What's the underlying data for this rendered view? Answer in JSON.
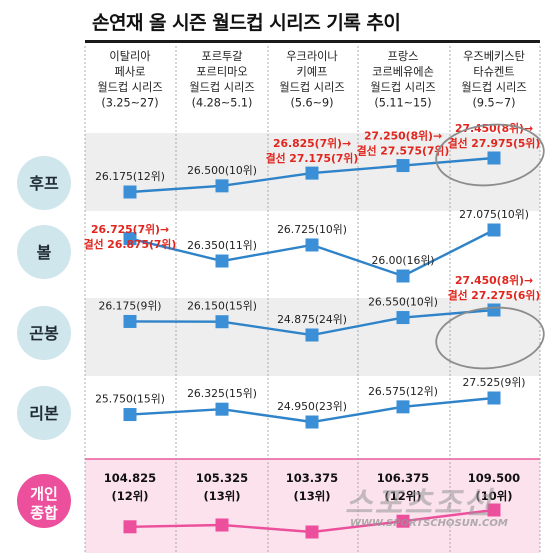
{
  "title": "손연재 올 시즌 월드컵 시리즈 기록 추이",
  "watermark": {
    "main": "스포츠조선",
    "url": "WWW.SPORTSCHOSUN.COM"
  },
  "colors": {
    "line": "#2f83c9",
    "marker": "#3a8fd6",
    "total_line": "#ec4f9b",
    "highlight": "#e0261e",
    "circle_fill": "#cfe6ec",
    "total_circle": "#ec4f9b",
    "band_gray": "#eeeeee",
    "band_pink": "#fbe2ec"
  },
  "columns": [
    {
      "lines": [
        "이탈리아",
        "페사로",
        "월드컵 시리즈",
        "(3.25~27)"
      ]
    },
    {
      "lines": [
        "포르투갈",
        "포르티마오",
        "월드컵 시리즈",
        "(4.28~5.1)"
      ]
    },
    {
      "lines": [
        "우크라이나",
        "키예프",
        "월드컵 시리즈",
        "(5.6~9)"
      ]
    },
    {
      "lines": [
        "프랑스",
        "코르베유에손",
        "월드컵 시리즈",
        "(5.11~15)"
      ]
    },
    {
      "lines": [
        "우즈베키스탄",
        "타슈켄트",
        "월드컵 시리즈",
        "(9.5~7)"
      ]
    }
  ],
  "chart_data": {
    "type": "line",
    "title": "손연재 올 시즌 월드컵 시리즈 기록 추이",
    "categories": [
      "이탈리아 페사로 월드컵 시리즈 (3.25~27)",
      "포르투갈 포르티마오 월드컵 시리즈 (4.28~5.1)",
      "우크라이나 키예프 월드컵 시리즈 (5.6~9)",
      "프랑스 코르베유에손 월드컵 시리즈 (5.11~15)",
      "우즈베키스탄 타슈켄트 월드컵 시리즈 (9.5~7)"
    ],
    "series": [
      {
        "name": "후프",
        "values": [
          26.175,
          26.5,
          27.175,
          27.575,
          27.975
        ],
        "labels": [
          {
            "lines": [
              "26.175(12위)"
            ],
            "highlight": false
          },
          {
            "lines": [
              "26.500(10위)"
            ],
            "highlight": false
          },
          {
            "lines": [
              "26.825(7위)→",
              "결선 27.175(7위)"
            ],
            "highlight": true
          },
          {
            "lines": [
              "27.250(8위)→",
              "결선 27.575(7위)"
            ],
            "highlight": true
          },
          {
            "lines": [
              "27.450(8위)→",
              "결선 27.975(5위)"
            ],
            "highlight": true
          }
        ]
      },
      {
        "name": "볼",
        "values": [
          26.875,
          26.35,
          26.725,
          26.0,
          27.075
        ],
        "labels": [
          {
            "lines": [
              "26.725(7위)→",
              "결선 26.875(7위)"
            ],
            "highlight": true
          },
          {
            "lines": [
              "26.350(11위)"
            ],
            "highlight": false
          },
          {
            "lines": [
              "26.725(10위)"
            ],
            "highlight": false
          },
          {
            "lines": [
              "26.00(16위)"
            ],
            "highlight": false
          },
          {
            "lines": [
              "27.075(10위)"
            ],
            "highlight": false
          }
        ]
      },
      {
        "name": "곤봉",
        "values": [
          26.175,
          26.15,
          24.875,
          26.55,
          27.275
        ],
        "labels": [
          {
            "lines": [
              "26.175(9위)"
            ],
            "highlight": false
          },
          {
            "lines": [
              "26.150(15위)"
            ],
            "highlight": false
          },
          {
            "lines": [
              "24.875(24위)"
            ],
            "highlight": false
          },
          {
            "lines": [
              "26.550(10위)"
            ],
            "highlight": false
          },
          {
            "lines": [
              "27.450(8위)→",
              "결선 27.275(6위)"
            ],
            "highlight": true
          }
        ]
      },
      {
        "name": "리본",
        "values": [
          25.75,
          26.325,
          24.95,
          26.575,
          27.525
        ],
        "labels": [
          {
            "lines": [
              "25.750(15위)"
            ],
            "highlight": false
          },
          {
            "lines": [
              "26.325(15위)"
            ],
            "highlight": false
          },
          {
            "lines": [
              "24.950(23위)"
            ],
            "highlight": false
          },
          {
            "lines": [
              "26.575(12위)"
            ],
            "highlight": false
          },
          {
            "lines": [
              "27.525(9위)"
            ],
            "highlight": false
          }
        ]
      }
    ],
    "total": {
      "name": "개인 종합",
      "values": [
        104.825,
        105.325,
        103.375,
        106.375,
        109.5
      ],
      "labels": [
        {
          "lines": [
            "104.825",
            "(12위)"
          ]
        },
        {
          "lines": [
            "105.325",
            "(13위)"
          ]
        },
        {
          "lines": [
            "103.375",
            "(13위)"
          ]
        },
        {
          "lines": [
            "106.375",
            "(12위)"
          ]
        },
        {
          "lines": [
            "109.500",
            "(10위)"
          ]
        }
      ]
    },
    "circled": [
      {
        "series": "후프",
        "index": 4
      },
      {
        "series": "곤봉",
        "index": 4
      }
    ]
  }
}
